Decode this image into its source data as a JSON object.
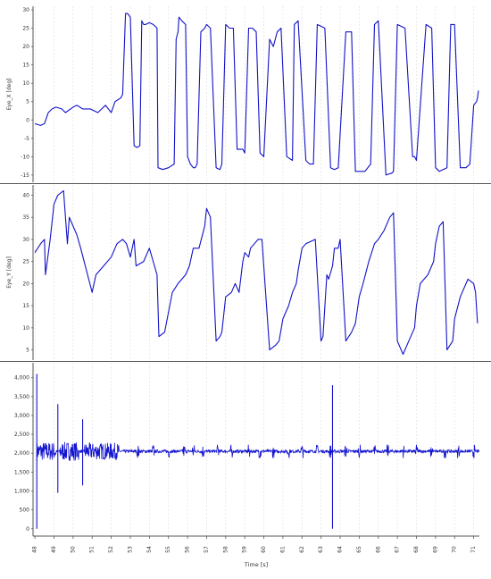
{
  "chart_data": [
    {
      "type": "line",
      "ylabel": "Eye_X [deg]",
      "ylim": [
        -16,
        30
      ],
      "yticks": [
        -15,
        -10,
        -5,
        0,
        5,
        10,
        15,
        20,
        25,
        30
      ],
      "series": [
        {
          "color": "#1212c8",
          "x": [
            48.0,
            48.3,
            48.5,
            48.7,
            48.9,
            49.1,
            49.4,
            49.6,
            50.0,
            50.2,
            50.5,
            50.9,
            51.3,
            51.7,
            52.0,
            52.2,
            52.5,
            52.6,
            52.75,
            52.85,
            53.0,
            53.2,
            53.35,
            53.5,
            53.6,
            53.7,
            53.8,
            54.0,
            54.2,
            54.4,
            54.45,
            54.7,
            55.0,
            55.3,
            55.4,
            55.5,
            55.55,
            55.7,
            55.9,
            56.0,
            56.15,
            56.3,
            56.4,
            56.5,
            56.7,
            56.9,
            57.0,
            57.2,
            57.5,
            57.7,
            57.8,
            58.0,
            58.2,
            58.4,
            58.6,
            58.9,
            59.0,
            59.2,
            59.4,
            59.6,
            59.8,
            60.0,
            60.3,
            60.5,
            60.7,
            60.9,
            61.2,
            61.5,
            61.6,
            61.8,
            62.2,
            62.4,
            62.6,
            62.8,
            63.2,
            63.5,
            63.7,
            63.9,
            64.3,
            64.6,
            64.8,
            65.0,
            65.3,
            65.6,
            65.8,
            66.0,
            66.4,
            66.7,
            66.8,
            67.0,
            67.4,
            67.8,
            67.9,
            68.0,
            68.5,
            68.8,
            69.0,
            69.2,
            69.6,
            69.8,
            70.0,
            70.3,
            70.6,
            70.8,
            71.0,
            71.15,
            71.2,
            71.25
          ],
          "y": [
            -1,
            -1.5,
            -1,
            2,
            3,
            3.5,
            3,
            2,
            3.5,
            4,
            3,
            3,
            2,
            4,
            2,
            5,
            6,
            7,
            29,
            29,
            28,
            -7,
            -7.5,
            -7,
            27,
            26,
            26,
            26.5,
            26,
            25,
            -13,
            -13.5,
            -13,
            -12,
            22,
            24,
            28,
            27,
            26,
            -10,
            -12,
            -13,
            -13,
            -12,
            24,
            25,
            26,
            25,
            -13,
            -13.5,
            -12,
            26,
            25,
            25,
            -8,
            -8,
            -9,
            25,
            25,
            24,
            -9,
            -10,
            22,
            20,
            24,
            25,
            -10,
            -11,
            26,
            27,
            -11,
            -12,
            -12,
            26,
            25,
            -13,
            -13.5,
            -13,
            24,
            24,
            -14,
            -14,
            -14,
            -12,
            26,
            27,
            -15,
            -14.5,
            -14,
            26,
            25,
            -10,
            -10,
            -11,
            26,
            25,
            -13,
            -14,
            -13,
            26,
            26,
            -13,
            -13,
            -12,
            4,
            5,
            6,
            8
          ]
        }
      ]
    },
    {
      "type": "line",
      "ylabel": "Eye_Y [deg]",
      "ylim": [
        3.5,
        41.5
      ],
      "yticks": [
        5,
        10,
        15,
        20,
        25,
        30,
        35,
        40
      ],
      "series": [
        {
          "color": "#1212c8",
          "x": [
            48.0,
            48.3,
            48.5,
            48.55,
            48.8,
            49.0,
            49.2,
            49.5,
            49.7,
            49.8,
            50.0,
            50.2,
            50.4,
            50.7,
            51.0,
            51.2,
            51.6,
            52.0,
            52.3,
            52.6,
            52.8,
            53.0,
            53.2,
            53.3,
            53.7,
            54.0,
            54.2,
            54.4,
            54.5,
            54.8,
            55.2,
            55.5,
            55.9,
            56.1,
            56.3,
            56.6,
            56.9,
            57.0,
            57.2,
            57.5,
            57.7,
            57.8,
            58.0,
            58.3,
            58.5,
            58.7,
            58.9,
            59.0,
            59.2,
            59.3,
            59.5,
            59.7,
            59.9,
            60.3,
            60.6,
            60.8,
            61.0,
            61.3,
            61.5,
            61.7,
            61.8,
            62.0,
            62.2,
            62.7,
            63.0,
            63.1,
            63.3,
            63.4,
            63.6,
            63.7,
            63.9,
            64.0,
            64.3,
            64.6,
            64.8,
            65.0,
            65.2,
            65.5,
            65.8,
            66.0,
            66.3,
            66.6,
            66.8,
            67.0,
            67.3,
            67.6,
            67.9,
            68.0,
            68.2,
            68.6,
            68.9,
            69.0,
            69.2,
            69.4,
            69.6,
            69.9,
            70.0,
            70.3,
            70.7,
            71.0,
            71.1,
            71.2
          ],
          "y": [
            27,
            29,
            30,
            22,
            30,
            38,
            40,
            41,
            29,
            35,
            33,
            31,
            28,
            23,
            18,
            22,
            24,
            26,
            29,
            30,
            29,
            26,
            30,
            24,
            25,
            28,
            25,
            22,
            8,
            9,
            18,
            20,
            22,
            24,
            28,
            28,
            33,
            37,
            35,
            7,
            8,
            9,
            17,
            18,
            20,
            18,
            25,
            27,
            26,
            28,
            29,
            30,
            30,
            5,
            6,
            7,
            12,
            15,
            18,
            20,
            23,
            28,
            29,
            30,
            7,
            8,
            22,
            21,
            24,
            28,
            28,
            30,
            7,
            9,
            11,
            17,
            20,
            25,
            29,
            30,
            32,
            35,
            36,
            7,
            4,
            7,
            10,
            15,
            20,
            22,
            25,
            29,
            33,
            34,
            5,
            7,
            12,
            17,
            21,
            20,
            18,
            11
          ]
        }
      ]
    },
    {
      "type": "line",
      "ylim": [
        -100,
        4300
      ],
      "yticks": [
        "0",
        "500",
        "1,000",
        "1,500",
        "2,000",
        "2,500",
        "3,000",
        "3,500",
        "4,000"
      ],
      "ytick_values": [
        0,
        500,
        1000,
        1500,
        2000,
        2500,
        3000,
        3500,
        4000
      ],
      "baseline": 2050,
      "xlabel": "Time [s]",
      "xlim": [
        47.9,
        71.3
      ],
      "xticks": [
        48,
        49,
        50,
        51,
        52,
        53,
        54,
        55,
        56,
        57,
        58,
        59,
        60,
        61,
        62,
        63,
        64,
        65,
        66,
        67,
        68,
        69,
        70,
        71
      ],
      "series": [
        {
          "color": "#1515d0",
          "dense_bands": [
            [
              48.1,
              49.1,
              1800,
              2300
            ],
            [
              49.3,
              50.3,
              1800,
              2300
            ],
            [
              50.6,
              52.4,
              1850,
              2300
            ]
          ],
          "bursts": [
            53.4,
            54.2,
            55.0,
            55.8,
            56.3,
            56.8,
            57.6,
            58.3,
            59.2,
            59.8,
            60.5,
            61.3,
            62.0,
            62.8,
            63.5,
            64.3,
            65.0,
            65.8,
            66.5,
            67.3,
            68.0,
            68.8,
            69.5,
            70.2,
            71.0
          ],
          "spikes": [
            [
              48.1,
              0,
              4100
            ],
            [
              49.2,
              950,
              3300
            ],
            [
              50.5,
              1150,
              2900
            ],
            [
              63.6,
              0,
              3800
            ]
          ]
        }
      ]
    }
  ]
}
